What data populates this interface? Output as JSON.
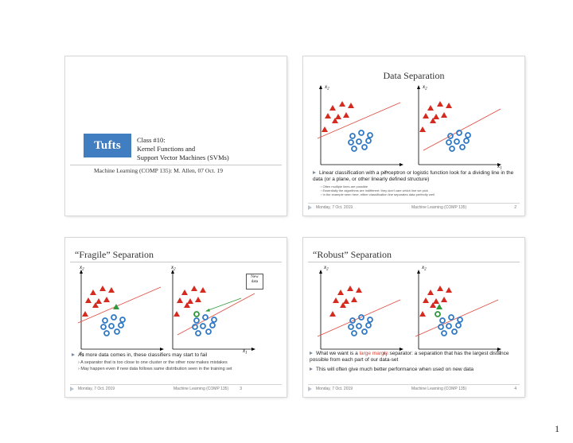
{
  "slide1": {
    "title_lines": [
      "Class #10:",
      "Kernel Functions and",
      "Support Vector Machines (SVMs)"
    ],
    "logo_text": "Tufts",
    "subtitle": "Machine Learning (COMP 135):  M. Allen, 07 Oct. 19"
  },
  "slide2": {
    "title": "Data Separation",
    "bullet": "Linear classification with a perceptron or logistic function look for a dividing line in the data (or a plane, or other linearly defined structure)",
    "subs": [
      "Often multiple lines are possible",
      "Essentially the algorithms are indifferent: they don't care which line we pick",
      "In the example seen here, either classification line separates data perfectly well"
    ],
    "footer": {
      "date": "Monday, 7 Oct. 2019",
      "course": "Machine Learning (COMP 135)",
      "num": "2"
    }
  },
  "slide3": {
    "title": "“Fragile” Separation",
    "callout": [
      "New",
      "data"
    ],
    "bullet": "As more data comes in, these classifiers may start to fail",
    "subs": [
      "A separator that is too close to one cluster or the other now makes mistakes",
      "May happen even if new data follows same distribution seen in the training set"
    ],
    "footer": {
      "date": "Monday, 7 Oct. 2019",
      "course": "Machine Learning (COMP 135)",
      "num": "3"
    }
  },
  "slide4": {
    "title": "“Robust” Separation",
    "bullet1_pre": "What we want is a ",
    "bullet1_hl": "large margin",
    "bullet1_post": " separator: a separation that has the largest distance possible from each part of our data-set",
    "bullet2": "This will often give much better performance when used on new data",
    "footer": {
      "date": "Monday, 7 Oct. 2019",
      "course": "Machine Learning (COMP 135)",
      "num": "4"
    }
  },
  "axis_labels": {
    "x": "x",
    "x_sub": "1",
    "y": "x",
    "y_sub": "2"
  },
  "page_number": "1",
  "colors": {
    "triangle": "#d42a1f",
    "circle": "#2f79c6",
    "new_point": "#2e9a3a",
    "separator": "#e04a3f",
    "tufts_blue": "#417dc1"
  }
}
